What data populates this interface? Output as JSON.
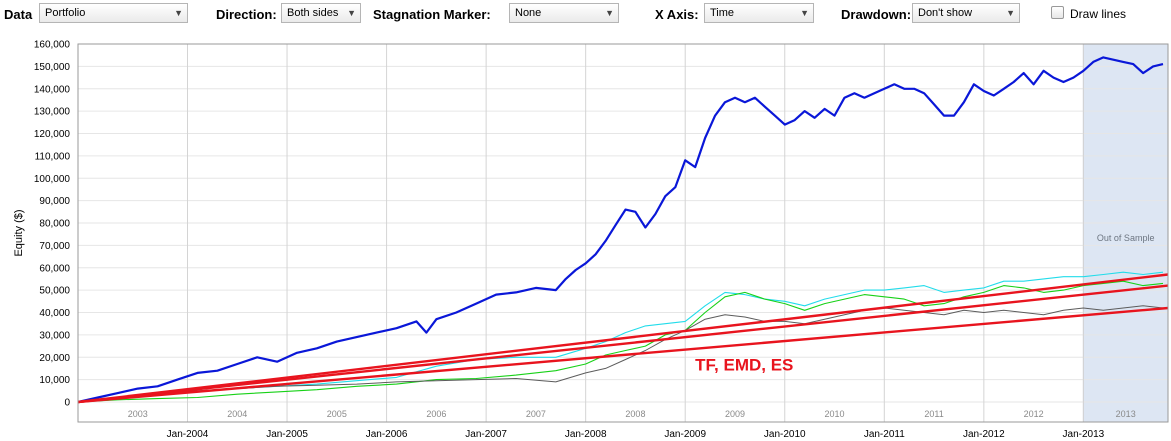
{
  "toolbar": {
    "data_label": "Data",
    "data_value": "Portfolio",
    "direction_label": "Direction:",
    "direction_value": "Both sides",
    "stagnation_label": "Stagnation Marker:",
    "stagnation_value": "None",
    "xaxis_label": "X Axis:",
    "xaxis_value": "Time",
    "drawdown_label": "Drawdown:",
    "drawdown_value": "Don't show",
    "drawlines_label": "Draw lines",
    "drawlines_checked": false,
    "dropdown_icon": "chevron-down-icon"
  },
  "chart_data": {
    "type": "line",
    "ylabel": "Equity ($)",
    "xlabel": "",
    "ylim": [
      0,
      160000
    ],
    "y_ticks": [
      0,
      10000,
      20000,
      30000,
      40000,
      50000,
      60000,
      70000,
      80000,
      90000,
      100000,
      110000,
      120000,
      130000,
      140000,
      150000,
      160000
    ],
    "y_tick_labels": [
      "0",
      "10,000",
      "20,000",
      "30,000",
      "40,000",
      "50,000",
      "60,000",
      "70,000",
      "80,000",
      "90,000",
      "100,000",
      "110,000",
      "120,000",
      "130,000",
      "140,000",
      "150,000",
      "160,000"
    ],
    "xlim": [
      2002.9,
      2013.85
    ],
    "x_ticks": [
      2004,
      2005,
      2006,
      2007,
      2008,
      2009,
      2010,
      2011,
      2012,
      2013
    ],
    "x_tick_labels": [
      "Jan-2004",
      "Jan-2005",
      "Jan-2006",
      "Jan-2007",
      "Jan-2008",
      "Jan-2009",
      "Jan-2010",
      "Jan-2011",
      "Jan-2012",
      "Jan-2013"
    ],
    "year_bands": [
      "2003",
      "2004",
      "2005",
      "2006",
      "2007",
      "2008",
      "2009",
      "2010",
      "2011",
      "2012",
      "2013"
    ],
    "grid": true,
    "out_of_sample": {
      "start": 2013.0,
      "end": 2013.85,
      "label": "Out of Sample",
      "color": "#dde6f3"
    },
    "annotation": {
      "text": "TF, EMD, ES",
      "color": "#e8141e",
      "x": 2009.1,
      "y": 14000
    },
    "series": [
      {
        "color": "#0a17d8",
        "width": 2.2,
        "x": [
          2002.9,
          2003.1,
          2003.3,
          2003.5,
          2003.7,
          2003.9,
          2004.1,
          2004.3,
          2004.5,
          2004.7,
          2004.9,
          2005.1,
          2005.3,
          2005.5,
          2005.7,
          2005.9,
          2006.1,
          2006.3,
          2006.4,
          2006.5,
          2006.7,
          2006.9,
          2007.1,
          2007.3,
          2007.5,
          2007.7,
          2007.8,
          2007.9,
          2008.0,
          2008.1,
          2008.2,
          2008.3,
          2008.4,
          2008.5,
          2008.6,
          2008.7,
          2008.8,
          2008.9,
          2009.0,
          2009.1,
          2009.2,
          2009.3,
          2009.4,
          2009.5,
          2009.6,
          2009.7,
          2009.8,
          2009.9,
          2010.0,
          2010.1,
          2010.2,
          2010.3,
          2010.4,
          2010.5,
          2010.6,
          2010.7,
          2010.8,
          2010.9,
          2011.0,
          2011.1,
          2011.2,
          2011.3,
          2011.4,
          2011.5,
          2011.6,
          2011.7,
          2011.8,
          2011.9,
          2012.0,
          2012.1,
          2012.2,
          2012.3,
          2012.4,
          2012.5,
          2012.6,
          2012.7,
          2012.8,
          2012.9,
          2013.0,
          2013.1,
          2013.2,
          2013.3,
          2013.4,
          2013.5,
          2013.6,
          2013.7,
          2013.8
        ],
        "y": [
          0,
          2000,
          4000,
          6000,
          7000,
          10000,
          13000,
          14000,
          17000,
          20000,
          18000,
          22000,
          24000,
          27000,
          29000,
          31000,
          33000,
          36000,
          31000,
          37000,
          40000,
          44000,
          48000,
          49000,
          51000,
          50000,
          55000,
          59000,
          62000,
          66000,
          72000,
          79000,
          86000,
          85000,
          78000,
          84000,
          92000,
          96000,
          108000,
          105000,
          118000,
          128000,
          134000,
          136000,
          134000,
          136000,
          132000,
          128000,
          124000,
          126000,
          130000,
          127000,
          131000,
          128000,
          136000,
          138000,
          136000,
          138000,
          140000,
          142000,
          140000,
          140000,
          138000,
          133000,
          128000,
          128000,
          134000,
          142000,
          139000,
          137000,
          140000,
          143000,
          147000,
          142000,
          148000,
          145000,
          143000,
          145000,
          148000,
          152000,
          154000,
          153000,
          152000,
          151000,
          147000,
          150000,
          151000
        ]
      },
      {
        "color": "#22dcea",
        "width": 1.1,
        "x": [
          2002.9,
          2003.3,
          2003.7,
          2004.1,
          2004.5,
          2004.9,
          2005.3,
          2005.7,
          2006.1,
          2006.5,
          2006.9,
          2007.3,
          2007.7,
          2008.0,
          2008.2,
          2008.4,
          2008.6,
          2008.8,
          2009.0,
          2009.2,
          2009.4,
          2009.6,
          2009.8,
          2010.0,
          2010.2,
          2010.4,
          2010.6,
          2010.8,
          2011.0,
          2011.2,
          2011.4,
          2011.6,
          2011.8,
          2012.0,
          2012.2,
          2012.4,
          2012.6,
          2012.8,
          2013.0,
          2013.2,
          2013.4,
          2013.6,
          2013.8
        ],
        "y": [
          0,
          2000,
          3000,
          4500,
          6000,
          7000,
          8000,
          9500,
          11000,
          16000,
          19000,
          20000,
          20000,
          24000,
          27000,
          31000,
          34000,
          35000,
          36000,
          43000,
          49000,
          48000,
          46000,
          45000,
          43000,
          46000,
          48000,
          50000,
          50000,
          51000,
          52000,
          49000,
          50000,
          51000,
          54000,
          54000,
          55000,
          56000,
          56000,
          57000,
          58000,
          57000,
          58000
        ]
      },
      {
        "color": "#17d117",
        "width": 1.1,
        "x": [
          2002.9,
          2003.3,
          2003.7,
          2004.1,
          2004.5,
          2004.9,
          2005.3,
          2005.7,
          2006.1,
          2006.5,
          2006.9,
          2007.3,
          2007.7,
          2008.0,
          2008.2,
          2008.4,
          2008.6,
          2008.8,
          2009.0,
          2009.2,
          2009.4,
          2009.6,
          2009.8,
          2010.0,
          2010.2,
          2010.4,
          2010.6,
          2010.8,
          2011.0,
          2011.2,
          2011.4,
          2011.6,
          2011.8,
          2012.0,
          2012.2,
          2012.4,
          2012.6,
          2012.8,
          2013.0,
          2013.2,
          2013.4,
          2013.6,
          2013.8
        ],
        "y": [
          0,
          1000,
          1500,
          2000,
          3500,
          4500,
          5500,
          7000,
          8000,
          10000,
          10500,
          12000,
          14000,
          17000,
          21000,
          23000,
          25000,
          30000,
          32000,
          40000,
          47000,
          49000,
          46000,
          44000,
          41000,
          44000,
          46000,
          48000,
          47000,
          46000,
          43000,
          44000,
          47000,
          49000,
          52000,
          51000,
          49000,
          50000,
          52000,
          53000,
          54000,
          52000,
          53000
        ]
      },
      {
        "color": "#5c5c5c",
        "width": 1.0,
        "x": [
          2002.9,
          2003.3,
          2003.7,
          2004.1,
          2004.5,
          2004.9,
          2005.3,
          2005.7,
          2006.1,
          2006.5,
          2006.9,
          2007.3,
          2007.7,
          2008.0,
          2008.2,
          2008.4,
          2008.6,
          2008.8,
          2009.0,
          2009.2,
          2009.4,
          2009.6,
          2009.8,
          2010.0,
          2010.2,
          2010.4,
          2010.6,
          2010.8,
          2011.0,
          2011.2,
          2011.4,
          2011.6,
          2011.8,
          2012.0,
          2012.2,
          2012.4,
          2012.6,
          2012.8,
          2013.0,
          2013.2,
          2013.4,
          2013.6,
          2013.8
        ],
        "y": [
          0,
          2000,
          4000,
          5000,
          6000,
          7000,
          7500,
          8000,
          9000,
          9500,
          10000,
          10500,
          9000,
          13000,
          15000,
          19000,
          23000,
          28000,
          32000,
          37000,
          39000,
          38000,
          36000,
          36000,
          35000,
          37000,
          39000,
          41000,
          42000,
          41000,
          40000,
          39000,
          41000,
          40000,
          41000,
          40000,
          39000,
          41000,
          42000,
          41000,
          42000,
          43000,
          42000
        ]
      },
      {
        "color": "#e8141e",
        "width": 2.4,
        "x": [
          2002.9,
          2013.85
        ],
        "y": [
          0,
          57000
        ]
      },
      {
        "color": "#e8141e",
        "width": 2.4,
        "x": [
          2002.9,
          2013.85
        ],
        "y": [
          0,
          52000
        ]
      },
      {
        "color": "#e8141e",
        "width": 2.4,
        "x": [
          2002.9,
          2013.85
        ],
        "y": [
          0,
          42000
        ]
      }
    ]
  }
}
